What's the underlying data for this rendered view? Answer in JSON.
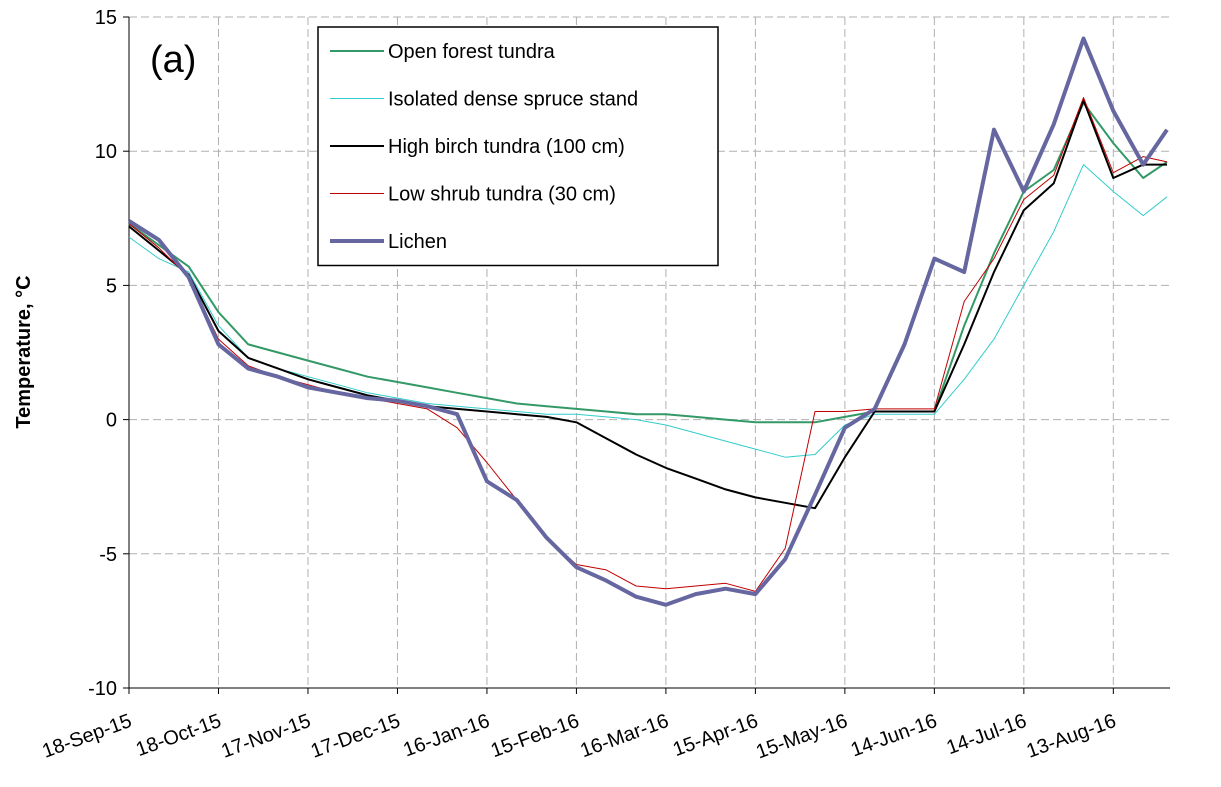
{
  "chart_data": {
    "type": "line",
    "annotation": "(a)",
    "y_label": "Temperature, °C",
    "ylim": [
      -10,
      15
    ],
    "yticks": [
      -10,
      -5,
      0,
      5,
      10,
      15
    ],
    "xlim": [
      "2015-09-18",
      "2016-09-01"
    ],
    "xticks": [
      {
        "value": "2015-09-18",
        "label": "18-Sep-15"
      },
      {
        "value": "2015-10-18",
        "label": "18-Oct-15"
      },
      {
        "value": "2015-11-17",
        "label": "17-Nov-15"
      },
      {
        "value": "2015-12-17",
        "label": "17-Dec-15"
      },
      {
        "value": "2016-01-16",
        "label": "16-Jan-16"
      },
      {
        "value": "2016-02-15",
        "label": "15-Feb-16"
      },
      {
        "value": "2016-03-16",
        "label": "16-Mar-16"
      },
      {
        "value": "2016-04-15",
        "label": "15-Apr-16"
      },
      {
        "value": "2016-05-15",
        "label": "15-May-16"
      },
      {
        "value": "2016-06-14",
        "label": "14-Jun-16"
      },
      {
        "value": "2016-07-14",
        "label": "14-Jul-16"
      },
      {
        "value": "2016-08-13",
        "label": "13-Aug-16"
      }
    ],
    "grid": true,
    "legend_position": "top-center",
    "x": [
      "2015-09-18",
      "2015-09-28",
      "2015-10-08",
      "2015-10-18",
      "2015-10-28",
      "2015-11-07",
      "2015-11-17",
      "2015-11-27",
      "2015-12-07",
      "2015-12-17",
      "2015-12-27",
      "2016-01-06",
      "2016-01-16",
      "2016-01-26",
      "2016-02-05",
      "2016-02-15",
      "2016-02-25",
      "2016-03-06",
      "2016-03-16",
      "2016-03-26",
      "2016-04-05",
      "2016-04-15",
      "2016-04-25",
      "2016-05-05",
      "2016-05-15",
      "2016-05-25",
      "2016-06-04",
      "2016-06-14",
      "2016-06-24",
      "2016-07-04",
      "2016-07-14",
      "2016-07-24",
      "2016-08-03",
      "2016-08-13",
      "2016-08-23",
      "2016-08-31"
    ],
    "series": [
      {
        "name": "Open forest tundra",
        "color": "#339966",
        "width": 2,
        "values": [
          7.3,
          6.5,
          5.7,
          4.0,
          2.8,
          2.5,
          2.2,
          1.9,
          1.6,
          1.4,
          1.2,
          1.0,
          0.8,
          0.6,
          0.5,
          0.4,
          0.3,
          0.2,
          0.2,
          0.1,
          0.0,
          -0.1,
          -0.1,
          -0.1,
          0.1,
          0.3,
          0.3,
          0.3,
          3.5,
          6.2,
          8.5,
          9.3,
          11.8,
          10.3,
          9.0,
          9.6
        ]
      },
      {
        "name": "Isolated dense spruce stand",
        "color": "#33cccc",
        "width": 1,
        "values": [
          6.8,
          6.0,
          5.5,
          3.5,
          2.3,
          1.9,
          1.6,
          1.3,
          1.0,
          0.8,
          0.6,
          0.5,
          0.4,
          0.3,
          0.2,
          0.2,
          0.1,
          0.0,
          -0.2,
          -0.5,
          -0.8,
          -1.1,
          -1.4,
          -1.3,
          -0.2,
          0.2,
          0.2,
          0.2,
          1.5,
          3.0,
          5.0,
          7.0,
          9.5,
          8.5,
          7.6,
          8.3
        ]
      },
      {
        "name": "High birch tundra (100 cm)",
        "color": "#000000",
        "width": 2,
        "values": [
          7.2,
          6.3,
          5.4,
          3.3,
          2.3,
          1.9,
          1.5,
          1.2,
          0.9,
          0.7,
          0.5,
          0.4,
          0.3,
          0.2,
          0.1,
          -0.1,
          -0.7,
          -1.3,
          -1.8,
          -2.2,
          -2.6,
          -2.9,
          -3.1,
          -3.3,
          -1.4,
          0.3,
          0.3,
          0.3,
          2.8,
          5.5,
          7.8,
          8.8,
          11.9,
          9.0,
          9.5,
          9.5
        ]
      },
      {
        "name": "Low shrub tundra (30 cm)",
        "color": "#c00000",
        "width": 1,
        "values": [
          7.3,
          6.4,
          5.3,
          3.0,
          2.0,
          1.6,
          1.3,
          1.0,
          0.8,
          0.6,
          0.4,
          -0.3,
          -1.6,
          -3.0,
          -4.4,
          -5.4,
          -5.6,
          -6.2,
          -6.3,
          -6.2,
          -6.1,
          -6.4,
          -4.8,
          0.3,
          0.3,
          0.4,
          0.4,
          0.4,
          4.4,
          6.0,
          8.2,
          9.1,
          12.0,
          9.2,
          9.8,
          9.6
        ]
      },
      {
        "name": "Lichen",
        "color": "#6666a0",
        "width": 4,
        "values": [
          7.4,
          6.7,
          5.3,
          2.8,
          1.9,
          1.6,
          1.2,
          1.0,
          0.8,
          0.7,
          0.5,
          0.2,
          -2.3,
          -3.0,
          -4.4,
          -5.5,
          -6.0,
          -6.6,
          -6.9,
          -6.5,
          -6.3,
          -6.5,
          -5.2,
          -2.8,
          -0.3,
          0.4,
          2.8,
          6.0,
          5.5,
          10.8,
          8.5,
          11.0,
          14.2,
          11.5,
          9.5,
          10.8
        ]
      }
    ]
  }
}
